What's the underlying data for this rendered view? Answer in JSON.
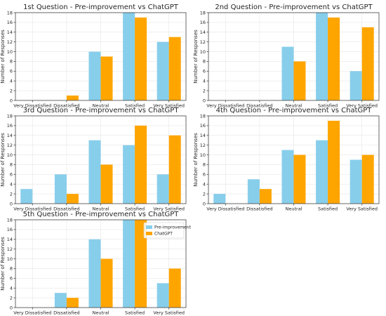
{
  "figure": {
    "legend": {
      "location": "upper-right of 5th panel"
    }
  },
  "chart_data": [
    {
      "type": "bar",
      "title": "1st Question - Pre-improvement vs ChatGPT",
      "xlabel": "",
      "ylabel": "Number of Responses",
      "categories": [
        "Very Dissatisfied",
        "Dissatisfied",
        "Neutral",
        "Satisfied",
        "Very Satisfied"
      ],
      "ylim": [
        0,
        18
      ],
      "yticks": [
        0,
        2,
        4,
        6,
        8,
        10,
        12,
        14,
        16,
        18
      ],
      "grid": true,
      "series": [
        {
          "name": "Pre-improvement",
          "color": "#87ceeb",
          "values": [
            0,
            0,
            10,
            18,
            12
          ]
        },
        {
          "name": "ChatGPT",
          "color": "#ffa500",
          "values": [
            0,
            1,
            9,
            17,
            13
          ]
        }
      ]
    },
    {
      "type": "bar",
      "title": "2nd Question - Pre-improvement vs ChatGPT",
      "xlabel": "",
      "ylabel": "Number of Responses",
      "categories": [
        "Very Dissatisfied",
        "Dissatisfied",
        "Neutral",
        "Satisfied",
        "Very Satisfied"
      ],
      "ylim": [
        0,
        18
      ],
      "yticks": [
        0,
        2,
        4,
        6,
        8,
        10,
        12,
        14,
        16,
        18
      ],
      "grid": true,
      "series": [
        {
          "name": "Pre-improvement",
          "color": "#87ceeb",
          "values": [
            0,
            0,
            11,
            18,
            6
          ]
        },
        {
          "name": "ChatGPT",
          "color": "#ffa500",
          "values": [
            0,
            0,
            8,
            17,
            15
          ]
        }
      ]
    },
    {
      "type": "bar",
      "title": "3rd Question - Pre-improvement vs ChatGPT",
      "xlabel": "",
      "ylabel": "Number of Responses",
      "categories": [
        "Very Dissatisfied",
        "Dissatisfied",
        "Neutral",
        "Satisfied",
        "Very Satisfied"
      ],
      "ylim": [
        0,
        18
      ],
      "yticks": [
        0,
        2,
        4,
        6,
        8,
        10,
        12,
        14,
        16,
        18
      ],
      "grid": true,
      "series": [
        {
          "name": "Pre-improvement",
          "color": "#87ceeb",
          "values": [
            3,
            6,
            13,
            12,
            6
          ]
        },
        {
          "name": "ChatGPT",
          "color": "#ffa500",
          "values": [
            0,
            2,
            8,
            16,
            14
          ]
        }
      ]
    },
    {
      "type": "bar",
      "title": "4th Question - Pre-improvement vs ChatGPT",
      "xlabel": "",
      "ylabel": "Number of Responses",
      "categories": [
        "Very Dissatisfied",
        "Dissatisfied",
        "Neutral",
        "Satisfied",
        "Very Satisfied"
      ],
      "ylim": [
        0,
        18
      ],
      "yticks": [
        0,
        2,
        4,
        6,
        8,
        10,
        12,
        14,
        16,
        18
      ],
      "grid": true,
      "series": [
        {
          "name": "Pre-improvement",
          "color": "#87ceeb",
          "values": [
            2,
            5,
            11,
            13,
            9
          ]
        },
        {
          "name": "ChatGPT",
          "color": "#ffa500",
          "values": [
            0,
            3,
            10,
            17,
            10
          ]
        }
      ]
    },
    {
      "type": "bar",
      "title": "5th Question - Pre-improvement vs ChatGPT",
      "xlabel": "",
      "ylabel": "Number of Responses",
      "categories": [
        "Very Dissatisfied",
        "Dissatisfied",
        "Neutral",
        "Satisfied",
        "Very Satisfied"
      ],
      "ylim": [
        0,
        18
      ],
      "yticks": [
        0,
        2,
        4,
        6,
        8,
        10,
        12,
        14,
        16,
        18
      ],
      "grid": true,
      "legend": true,
      "series": [
        {
          "name": "Pre-improvement",
          "color": "#87ceeb",
          "values": [
            0,
            3,
            14,
            18,
            5
          ]
        },
        {
          "name": "ChatGPT",
          "color": "#ffa500",
          "values": [
            0,
            2,
            10,
            18,
            8
          ]
        }
      ]
    }
  ]
}
